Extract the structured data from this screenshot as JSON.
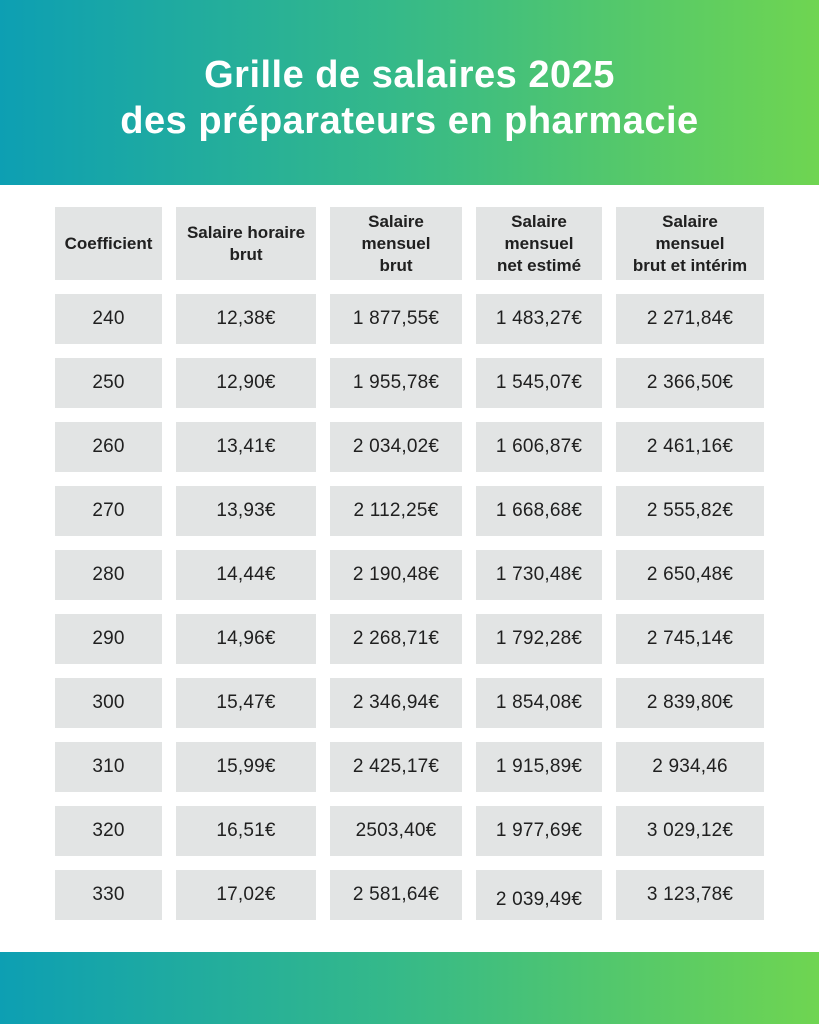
{
  "header": {
    "title_line1": "Grille de salaires 2025",
    "title_line2": "des préparateurs en pharmacie"
  },
  "table": {
    "columns": [
      {
        "label": "Coefficient"
      },
      {
        "label": "Salaire horaire\nbrut"
      },
      {
        "label": "Salaire\nmensuel\nbrut"
      },
      {
        "label": "Salaire\nmensuel\nnet estimé"
      },
      {
        "label": "Salaire\nmensuel\nbrut et intérim"
      }
    ],
    "rows": [
      {
        "values": [
          "240",
          "12,38€",
          "1 877,55€",
          "1 483,27€",
          "2 271,84€"
        ]
      },
      {
        "values": [
          "250",
          "12,90€",
          "1 955,78€",
          "1 545,07€",
          "2 366,50€"
        ]
      },
      {
        "values": [
          "260",
          "13,41€",
          "2 034,02€",
          "1 606,87€",
          "2 461,16€"
        ]
      },
      {
        "values": [
          "270",
          "13,93€",
          "2 112,25€",
          "1 668,68€",
          "2 555,82€"
        ]
      },
      {
        "values": [
          "280",
          "14,44€",
          "2 190,48€",
          "1 730,48€",
          "2 650,48€"
        ]
      },
      {
        "values": [
          "290",
          "14,96€",
          "2 268,71€",
          "1 792,28€",
          "2 745,14€"
        ]
      },
      {
        "values": [
          "300",
          "15,47€",
          "2 346,94€",
          "1 854,08€",
          "2 839,80€"
        ]
      },
      {
        "values": [
          "310",
          "15,99€",
          "2 425,17€",
          "1 915,89€",
          "2 934,46"
        ]
      },
      {
        "values": [
          "320",
          "16,51€",
          "2503,40€",
          "1 977,69€",
          "3 029,12€"
        ]
      },
      {
        "values": [
          "330",
          "17,02€",
          "2 581,64€",
          "2 039,49€",
          "3 123,78€"
        ]
      }
    ]
  },
  "colors": {
    "gradient_start": "#0d9fb3",
    "gradient_end": "#6fd551",
    "cell_background": "#e2e4e4",
    "title_text": "#ffffff"
  }
}
